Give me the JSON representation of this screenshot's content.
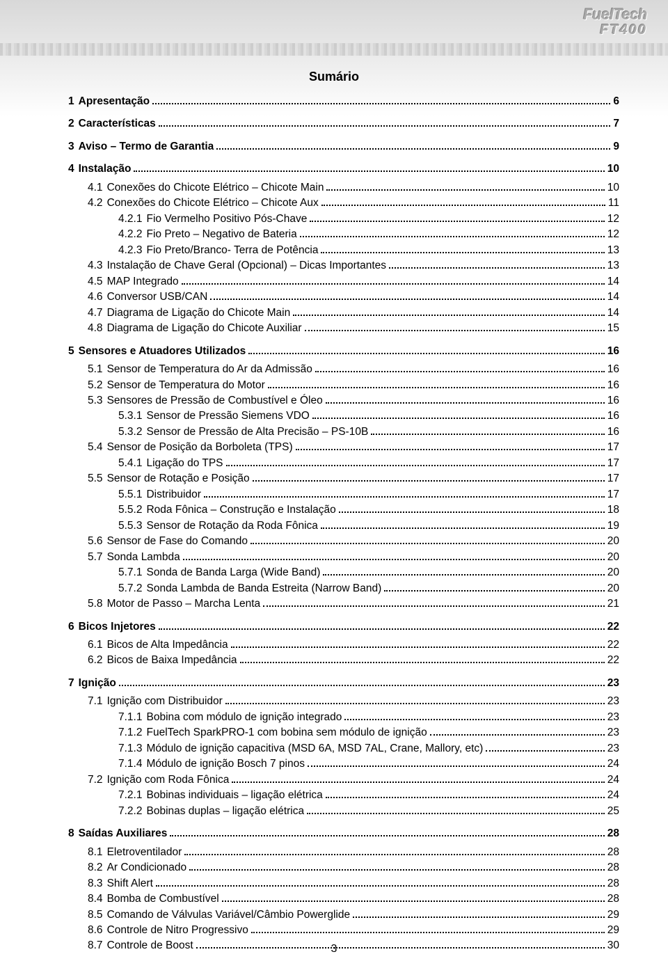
{
  "page_number": "3",
  "logo": {
    "brand": "FuelTech",
    "model": "FT400"
  },
  "summary_title": "Sumário",
  "toc": [
    {
      "num": "1",
      "label": "Apresentação",
      "page": "6",
      "level": 1,
      "bold": true,
      "gap": true
    },
    {
      "num": "2",
      "label": "Características",
      "page": "7",
      "level": 1,
      "bold": true,
      "gap": true
    },
    {
      "num": "3",
      "label": "Aviso – Termo de Garantia",
      "page": "9",
      "level": 1,
      "bold": true,
      "gap": true
    },
    {
      "num": "4",
      "label": "Instalação",
      "page": "10",
      "level": 1,
      "bold": true,
      "gap": true
    },
    {
      "num": "4.1",
      "label": "Conexões do Chicote Elétrico – Chicote Main",
      "page": "10",
      "level": 2,
      "bold": false
    },
    {
      "num": "4.2",
      "label": "Conexões do Chicote Elétrico – Chicote Aux",
      "page": "11",
      "level": 2,
      "bold": false
    },
    {
      "num": "4.2.1",
      "label": "Fio Vermelho Positivo Pós-Chave",
      "page": "12",
      "level": 3,
      "bold": false
    },
    {
      "num": "4.2.2",
      "label": "Fio Preto – Negativo de Bateria",
      "page": "12",
      "level": 3,
      "bold": false
    },
    {
      "num": "4.2.3",
      "label": "Fio Preto/Branco- Terra de Potência",
      "page": "13",
      "level": 3,
      "bold": false
    },
    {
      "num": "4.3",
      "label": "Instalação de Chave Geral  (Opcional) – Dicas Importantes",
      "page": "13",
      "level": 2,
      "bold": false
    },
    {
      "num": "4.5",
      "label": "MAP Integrado",
      "page": "14",
      "level": 2,
      "bold": false
    },
    {
      "num": "4.6",
      "label": "Conversor USB/CAN",
      "page": "14",
      "level": 2,
      "bold": false
    },
    {
      "num": "4.7",
      "label": "Diagrama de Ligação do Chicote Main",
      "page": "14",
      "level": 2,
      "bold": false
    },
    {
      "num": "4.8",
      "label": "Diagrama de Ligação do Chicote Auxiliar",
      "page": "15",
      "level": 2,
      "bold": false
    },
    {
      "num": "5",
      "label": "Sensores e Atuadores Utilizados",
      "page": "16",
      "level": 1,
      "bold": true,
      "gap": true
    },
    {
      "num": "5.1",
      "label": "Sensor de Temperatura do Ar da Admissão",
      "page": "16",
      "level": 2,
      "bold": false
    },
    {
      "num": "5.2",
      "label": "Sensor de Temperatura do Motor",
      "page": "16",
      "level": 2,
      "bold": false
    },
    {
      "num": "5.3",
      "label": "Sensores de Pressão de Combustível e Óleo",
      "page": "16",
      "level": 2,
      "bold": false
    },
    {
      "num": "5.3.1",
      "label": "Sensor de Pressão Siemens VDO",
      "page": "16",
      "level": 3,
      "bold": false
    },
    {
      "num": "5.3.2",
      "label": "Sensor de Pressão de Alta Precisão – PS-10B",
      "page": "16",
      "level": 3,
      "bold": false
    },
    {
      "num": "5.4",
      "label": "Sensor de Posição da Borboleta (TPS)",
      "page": "17",
      "level": 2,
      "bold": false
    },
    {
      "num": "5.4.1",
      "label": "Ligação do TPS",
      "page": "17",
      "level": 3,
      "bold": false
    },
    {
      "num": "5.5",
      "label": "Sensor de Rotação e Posição",
      "page": "17",
      "level": 2,
      "bold": false
    },
    {
      "num": "5.5.1",
      "label": "Distribuidor",
      "page": "17",
      "level": 3,
      "bold": false
    },
    {
      "num": "5.5.2",
      "label": "Roda Fônica – Construção e Instalação",
      "page": "18",
      "level": 3,
      "bold": false
    },
    {
      "num": "5.5.3",
      "label": "Sensor de Rotação da Roda Fônica",
      "page": "19",
      "level": 3,
      "bold": false
    },
    {
      "num": "5.6",
      "label": "Sensor de Fase do Comando",
      "page": "20",
      "level": 2,
      "bold": false
    },
    {
      "num": "5.7",
      "label": "Sonda Lambda",
      "page": "20",
      "level": 2,
      "bold": false
    },
    {
      "num": "5.7.1",
      "label": "Sonda de Banda Larga (Wide Band)",
      "page": "20",
      "level": 3,
      "bold": false
    },
    {
      "num": "5.7.2",
      "label": "Sonda Lambda de Banda Estreita (Narrow Band)",
      "page": "20",
      "level": 3,
      "bold": false
    },
    {
      "num": "5.8",
      "label": "Motor de Passo – Marcha Lenta",
      "page": "21",
      "level": 2,
      "bold": false
    },
    {
      "num": "6",
      "label": "Bicos Injetores",
      "page": "22",
      "level": 1,
      "bold": true,
      "gap": true
    },
    {
      "num": "6.1",
      "label": "Bicos de Alta Impedância",
      "page": "22",
      "level": 2,
      "bold": false
    },
    {
      "num": "6.2",
      "label": "Bicos de Baixa Impedância",
      "page": "22",
      "level": 2,
      "bold": false
    },
    {
      "num": "7",
      "label": "Ignição",
      "page": "23",
      "level": 1,
      "bold": true,
      "gap": true
    },
    {
      "num": "7.1",
      "label": "Ignição com Distribuidor",
      "page": "23",
      "level": 2,
      "bold": false
    },
    {
      "num": "7.1.1",
      "label": "Bobina com módulo de ignição integrado",
      "page": "23",
      "level": 3,
      "bold": false
    },
    {
      "num": "7.1.2",
      "label": "FuelTech SparkPRO-1 com bobina sem módulo de ignição",
      "page": "23",
      "level": 3,
      "bold": false
    },
    {
      "num": "7.1.3",
      "label": "Módulo de ignição capacitiva (MSD 6A, MSD 7AL, Crane, Mallory, etc)",
      "page": "23",
      "level": 3,
      "bold": false
    },
    {
      "num": "7.1.4",
      "label": "Módulo de ignição Bosch 7 pinos",
      "page": "24",
      "level": 3,
      "bold": false
    },
    {
      "num": "7.2",
      "label": "Ignição com Roda Fônica",
      "page": "24",
      "level": 2,
      "bold": false
    },
    {
      "num": "7.2.1",
      "label": "Bobinas individuais – ligação elétrica",
      "page": "24",
      "level": 3,
      "bold": false
    },
    {
      "num": "7.2.2",
      "label": "Bobinas duplas – ligação elétrica",
      "page": "25",
      "level": 3,
      "bold": false
    },
    {
      "num": "8",
      "label": "Saídas Auxiliares",
      "page": "28",
      "level": 1,
      "bold": true,
      "gap": true
    },
    {
      "num": "8.1",
      "label": "Eletroventilador",
      "page": "28",
      "level": 2,
      "bold": false
    },
    {
      "num": "8.2",
      "label": "Ar Condicionado",
      "page": "28",
      "level": 2,
      "bold": false
    },
    {
      "num": "8.3",
      "label": "Shift Alert",
      "page": "28",
      "level": 2,
      "bold": false
    },
    {
      "num": "8.4",
      "label": "Bomba de Combustível",
      "page": "28",
      "level": 2,
      "bold": false
    },
    {
      "num": "8.5",
      "label": "Comando de Válvulas Variável/Câmbio Powerglide",
      "page": "29",
      "level": 2,
      "bold": false
    },
    {
      "num": "8.6",
      "label": "Controle de Nitro Progressivo",
      "page": "29",
      "level": 2,
      "bold": false
    },
    {
      "num": "8.7",
      "label": "Controle de Boost",
      "page": "30",
      "level": 2,
      "bold": false
    }
  ]
}
